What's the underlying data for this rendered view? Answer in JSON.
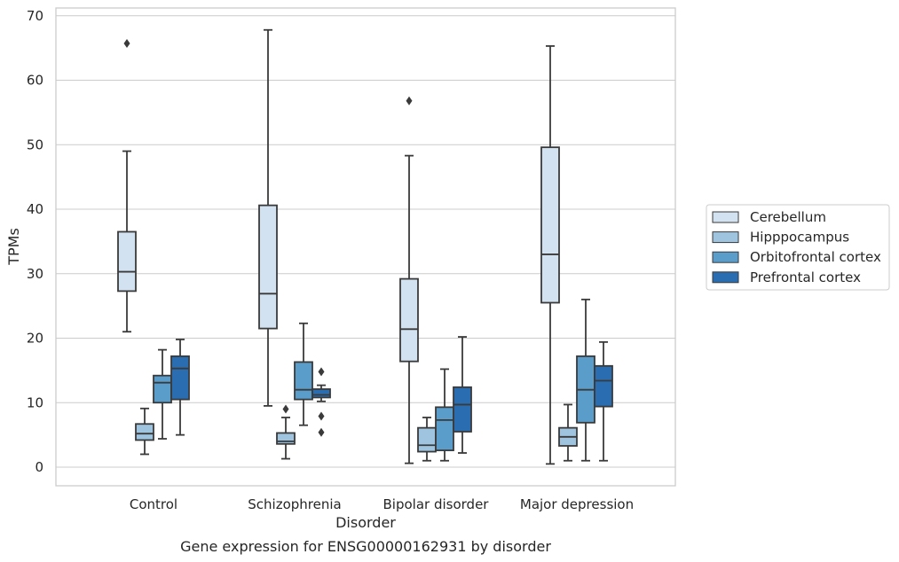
{
  "caption": "Gene expression for ENSG00000162931 by disorder",
  "chart_data": {
    "type": "box",
    "xlabel": "Disorder",
    "ylabel": "TPMs",
    "ylim": [
      -2.8,
      71.3
    ],
    "yticks": [
      0,
      10,
      20,
      30,
      40,
      50,
      60,
      70
    ],
    "grid": "horizontal",
    "legend_position": "right",
    "categories": [
      "Control",
      "Schizophrenia",
      "Bipolar disorder",
      "Major depression"
    ],
    "series": [
      {
        "name": "Cerebellum",
        "color": "#d3e2f0",
        "boxes": [
          {
            "whisker_low": 21.0,
            "q1": 27.3,
            "median": 30.3,
            "q3": 36.5,
            "whisker_high": 49.0,
            "outliers": [
              65.7
            ]
          },
          {
            "whisker_low": 9.5,
            "q1": 21.5,
            "median": 26.9,
            "q3": 40.6,
            "whisker_high": 67.8,
            "outliers": []
          },
          {
            "whisker_low": 0.6,
            "q1": 16.4,
            "median": 21.4,
            "q3": 29.2,
            "whisker_high": 48.3,
            "outliers": [
              56.8
            ]
          },
          {
            "whisker_low": 0.5,
            "q1": 25.5,
            "median": 33.0,
            "q3": 49.6,
            "whisker_high": 65.3,
            "outliers": []
          }
        ]
      },
      {
        "name": "Hipppocampus",
        "color": "#9ec4e0",
        "boxes": [
          {
            "whisker_low": 2.0,
            "q1": 4.2,
            "median": 5.2,
            "q3": 6.7,
            "whisker_high": 9.1,
            "outliers": []
          },
          {
            "whisker_low": 1.3,
            "q1": 3.6,
            "median": 4.0,
            "q3": 5.3,
            "whisker_high": 7.7,
            "outliers": [
              9.0
            ]
          },
          {
            "whisker_low": 1.0,
            "q1": 2.4,
            "median": 3.4,
            "q3": 6.1,
            "whisker_high": 7.7,
            "outliers": []
          },
          {
            "whisker_low": 1.0,
            "q1": 3.3,
            "median": 4.7,
            "q3": 6.1,
            "whisker_high": 9.7,
            "outliers": []
          }
        ]
      },
      {
        "name": "Orbitofrontal cortex",
        "color": "#5a9dcb",
        "boxes": [
          {
            "whisker_low": 4.4,
            "q1": 10.0,
            "median": 13.1,
            "q3": 14.2,
            "whisker_high": 18.2,
            "outliers": []
          },
          {
            "whisker_low": 6.5,
            "q1": 10.5,
            "median": 12.0,
            "q3": 16.3,
            "whisker_high": 22.3,
            "outliers": []
          },
          {
            "whisker_low": 1.0,
            "q1": 2.6,
            "median": 7.3,
            "q3": 9.3,
            "whisker_high": 15.2,
            "outliers": []
          },
          {
            "whisker_low": 1.0,
            "q1": 6.9,
            "median": 12.0,
            "q3": 17.2,
            "whisker_high": 26.0,
            "outliers": []
          }
        ]
      },
      {
        "name": "Prefrontal cortex",
        "color": "#2a6db0",
        "boxes": [
          {
            "whisker_low": 5.0,
            "q1": 10.5,
            "median": 15.3,
            "q3": 17.2,
            "whisker_high": 19.8,
            "outliers": []
          },
          {
            "whisker_low": 10.2,
            "q1": 10.8,
            "median": 11.2,
            "q3": 12.1,
            "whisker_high": 12.7,
            "outliers": [
              14.8,
              7.9,
              5.4
            ]
          },
          {
            "whisker_low": 2.2,
            "q1": 5.5,
            "median": 9.7,
            "q3": 12.4,
            "whisker_high": 20.2,
            "outliers": []
          },
          {
            "whisker_low": 1.0,
            "q1": 9.4,
            "median": 13.4,
            "q3": 15.7,
            "whisker_high": 19.4,
            "outliers": []
          }
        ]
      }
    ]
  }
}
